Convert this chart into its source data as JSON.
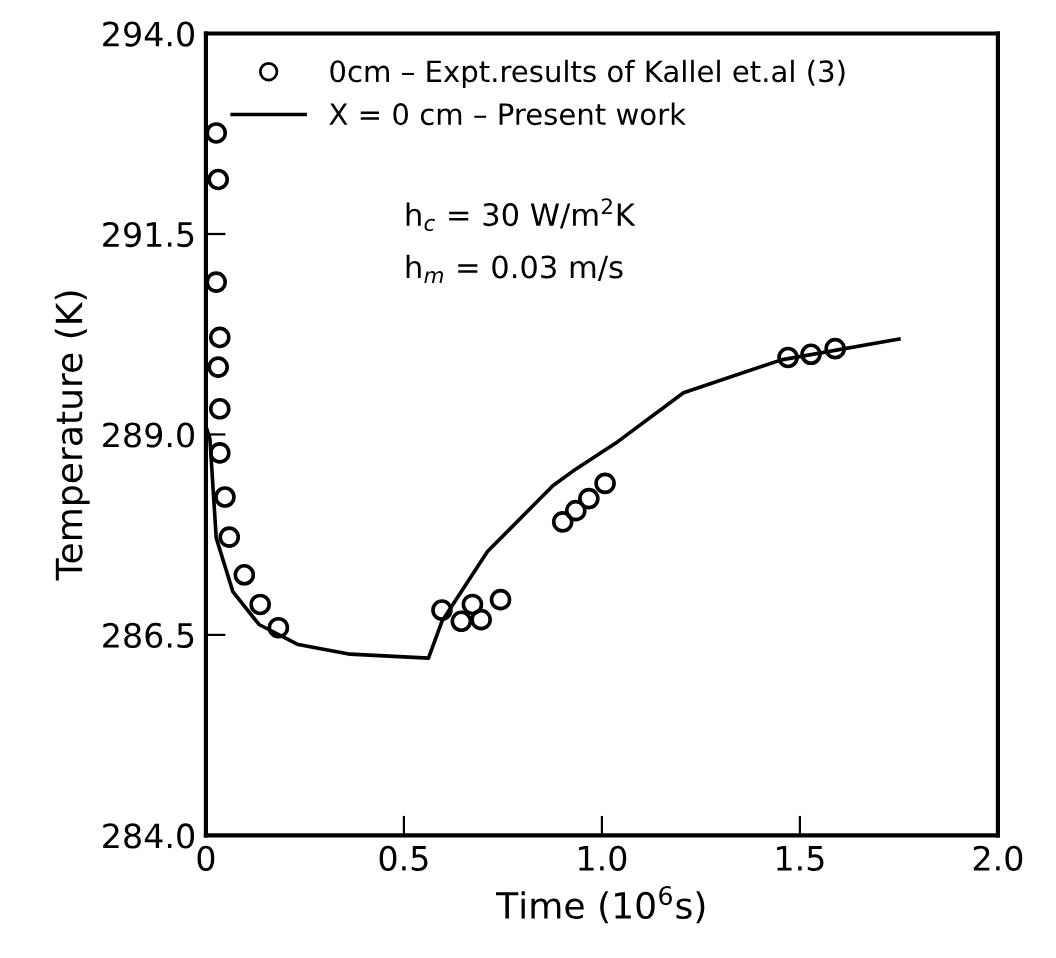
{
  "chart_data": {
    "type": "scatter",
    "xlabel": "Time (10$^{6}$s)",
    "ylabel": "Temperature (K)",
    "xlim": [
      0,
      2.0
    ],
    "ylim": [
      284.0,
      294.0
    ],
    "xticks": [
      0,
      0.5,
      {
        "value": 1.0,
        "label": "1.0"
      },
      1.5,
      {
        "value": 2.0,
        "label": "2.0"
      }
    ],
    "yticks": [
      {
        "value": 284.0,
        "label": "284.0"
      },
      {
        "value": 286.5,
        "label": "286.5"
      },
      {
        "value": 289.0,
        "label": "289.0"
      },
      {
        "value": 291.5,
        "label": "291.5"
      },
      {
        "value": 294.0,
        "label": "294.0"
      }
    ],
    "grid": false,
    "legend": "top left",
    "annotations": [
      "h$_{c}$ = 30 W/m$^{2}$K",
      "h$_{m}$ = 0.03 m/s"
    ],
    "series": [
      {
        "name": "0cm – Expt.results of Kallel et.al (3)",
        "marker": "circle",
        "color": "#000000",
        "x": [
          0.026,
          0.031,
          0.026,
          0.035,
          0.031,
          0.035,
          0.035,
          0.048,
          0.059,
          0.097,
          0.137,
          0.183,
          0.596,
          0.645,
          0.673,
          0.695,
          0.744,
          0.901,
          0.934,
          0.967,
          1.008,
          1.47,
          1.528,
          1.589
        ],
        "values": [
          292.76,
          292.18,
          290.9,
          290.21,
          289.84,
          289.32,
          288.77,
          288.22,
          287.72,
          287.25,
          286.88,
          286.59,
          286.81,
          286.67,
          286.88,
          286.69,
          286.94,
          287.91,
          288.05,
          288.2,
          288.39,
          289.96,
          290.0,
          290.07
        ]
      },
      {
        "name": "X = 0 cm – Present work",
        "type": "line",
        "marker": "none",
        "line_style": "solid",
        "color": "#000000",
        "x": [
          0.0,
          0.01,
          0.026,
          0.068,
          0.134,
          0.233,
          0.364,
          0.562,
          0.596,
          0.711,
          0.876,
          0.926,
          1.04,
          1.206,
          1.453,
          1.75
        ],
        "values": [
          289.1,
          288.95,
          287.71,
          287.04,
          286.63,
          286.38,
          286.26,
          286.21,
          286.67,
          287.54,
          288.36,
          288.54,
          288.91,
          289.52,
          289.93,
          290.19
        ]
      }
    ]
  }
}
